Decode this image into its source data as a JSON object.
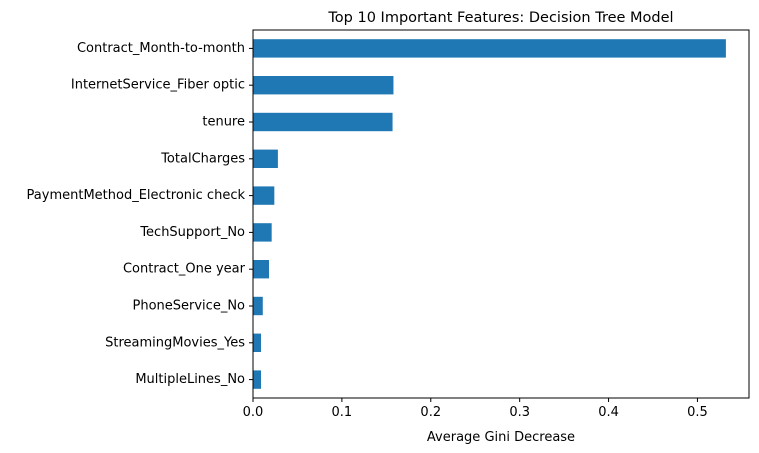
{
  "chart_data": {
    "type": "bar",
    "orientation": "horizontal",
    "title": "Top 10 Important Features: Decision Tree Model",
    "xlabel": "Average Gini Decrease",
    "ylabel": "",
    "xlim": [
      0,
      0.558
    ],
    "xticks": [
      0.0,
      0.1,
      0.2,
      0.3,
      0.4,
      0.5
    ],
    "xtick_labels": [
      "0.0",
      "0.1",
      "0.2",
      "0.3",
      "0.4",
      "0.5"
    ],
    "grid": false,
    "legend": "none",
    "bar_color": "#1f77b4",
    "categories": [
      "Contract_Month-to-month",
      "InternetService_Fiber optic",
      "tenure",
      "TotalCharges",
      "PaymentMethod_Electronic check",
      "TechSupport_No",
      "Contract_One year",
      "PhoneService_No",
      "StreamingMovies_Yes",
      "MultipleLines_No"
    ],
    "values": [
      0.532,
      0.158,
      0.157,
      0.028,
      0.024,
      0.021,
      0.018,
      0.011,
      0.009,
      0.009
    ]
  }
}
